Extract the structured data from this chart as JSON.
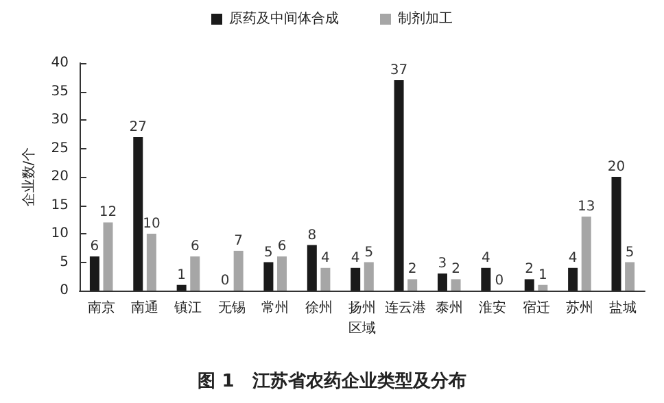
{
  "chart_data": {
    "type": "bar",
    "title": "图 1　江苏省农药企业类型及分布",
    "xlabel": "区域",
    "ylabel": "企业数/个",
    "categories": [
      "南京",
      "南通",
      "镇江",
      "无锡",
      "常州",
      "徐州",
      "扬州",
      "连云港",
      "泰州",
      "淮安",
      "宿迁",
      "苏州",
      "盐城"
    ],
    "series": [
      {
        "name": "原药及中间体合成",
        "color": "#1a1a1a",
        "values": [
          6,
          27,
          1,
          0,
          5,
          8,
          4,
          37,
          3,
          4,
          2,
          4,
          20
        ]
      },
      {
        "name": "制剂加工",
        "color": "#a6a6a6",
        "values": [
          12,
          10,
          6,
          7,
          6,
          4,
          5,
          2,
          2,
          0,
          1,
          13,
          5
        ]
      }
    ],
    "ylim": [
      0,
      40
    ],
    "yticks": [
      0,
      5,
      10,
      15,
      20,
      25,
      30,
      35,
      40
    ],
    "data_labels": true,
    "legend": "top",
    "grid": false
  }
}
